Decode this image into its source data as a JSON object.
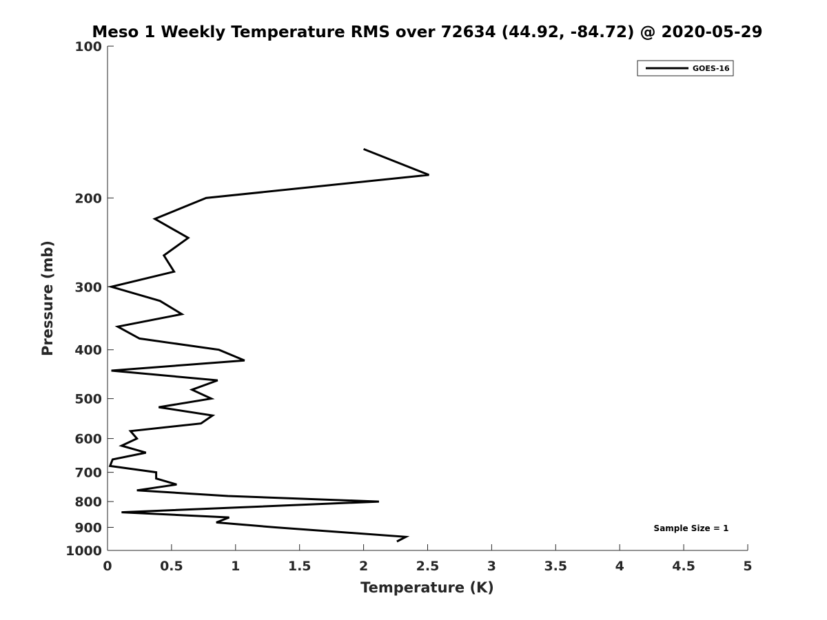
{
  "chart_data": {
    "type": "line",
    "title": "Meso 1 Weekly Temperature RMS over 72634 (44.92, -84.72) @ 2020-05-29",
    "xlabel": "Temperature (K)",
    "ylabel": "Pressure (mb)",
    "xlim": [
      0,
      5
    ],
    "ylim": [
      100,
      1000
    ],
    "yscale": "log",
    "y_reversed": true,
    "grid": false,
    "legend_position": "top-right",
    "xticks": [
      "0",
      "0.5",
      "1",
      "1.5",
      "2",
      "2.5",
      "3",
      "3.5",
      "4",
      "4.5",
      "5"
    ],
    "xtick_values": [
      0,
      0.5,
      1,
      1.5,
      2,
      2.5,
      3,
      3.5,
      4,
      4.5,
      5
    ],
    "yticks": [
      "100",
      "200",
      "300",
      "400",
      "500",
      "600",
      "700",
      "800",
      "900",
      "1000"
    ],
    "ytick_values": [
      100,
      200,
      300,
      400,
      500,
      600,
      700,
      800,
      900,
      1000
    ],
    "series": [
      {
        "name": "GOES-16",
        "color": "#000000",
        "x": [
          2.0,
          2.51,
          0.77,
          0.37,
          0.63,
          0.44,
          0.52,
          0.03,
          0.41,
          0.58,
          0.08,
          0.25,
          0.87,
          1.07,
          0.03,
          0.86,
          0.66,
          0.81,
          0.4,
          0.82,
          0.73,
          0.18,
          0.23,
          0.11,
          0.3,
          0.04,
          0.02,
          0.38,
          0.38,
          0.54,
          0.23,
          0.94,
          2.12,
          0.11,
          0.95,
          0.85,
          1.31,
          2.33,
          2.26
        ],
        "y": [
          160,
          180,
          200,
          220,
          240,
          260,
          280,
          300,
          320,
          340,
          360,
          380,
          400,
          420,
          440,
          460,
          480,
          500,
          520,
          540,
          560,
          580,
          600,
          620,
          640,
          660,
          680,
          700,
          720,
          740,
          760,
          780,
          800,
          840,
          860,
          880,
          900,
          940,
          960
        ]
      }
    ],
    "annotations": [
      "Sample Size = 1"
    ]
  }
}
